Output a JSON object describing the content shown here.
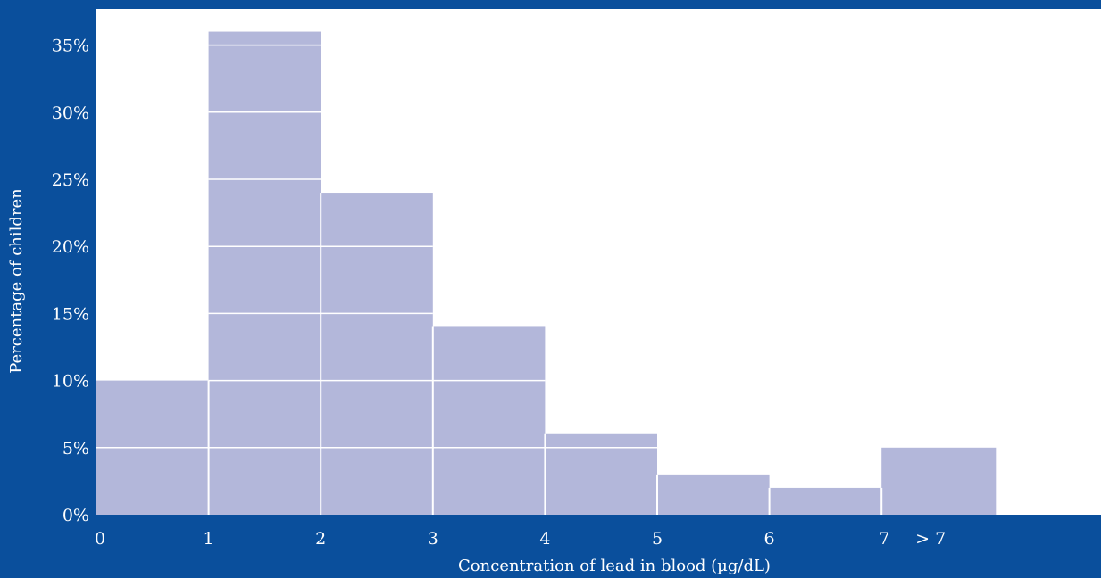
{
  "chart_data": {
    "type": "bar",
    "title": "",
    "xlabel": "Concentration of lead in blood (µg/dL)",
    "ylabel": "Percentage of children",
    "x_tick_labels": [
      "0",
      "1",
      "2",
      "3",
      "4",
      "5",
      "6",
      "7",
      "> 7"
    ],
    "y_tick_labels": [
      "0%",
      "5%",
      "10%",
      "15%",
      "20%",
      "25%",
      "30%",
      "35%"
    ],
    "ylim": [
      0,
      36
    ],
    "y_unit": "%",
    "bins": [
      {
        "from": 0,
        "to": 1,
        "value": 10
      },
      {
        "from": 1,
        "to": 2,
        "value": 36
      },
      {
        "from": 2,
        "to": 3,
        "value": 24
      },
      {
        "from": 3,
        "to": 4,
        "value": 14
      },
      {
        "from": 4,
        "to": 5,
        "value": 6
      },
      {
        "from": 5,
        "to": 6,
        "value": 3
      },
      {
        "from": 6,
        "to": 7,
        "value": 2
      },
      {
        "from": 7,
        "to": null,
        "label": "> 7",
        "value": 5
      }
    ],
    "grid": true,
    "legend": "none",
    "colors": {
      "background": "#0a4f9c",
      "plot_area": "#ffffff",
      "bar": "#b3b7da",
      "gridline": "#ffffff",
      "text": "#ffffff"
    }
  }
}
